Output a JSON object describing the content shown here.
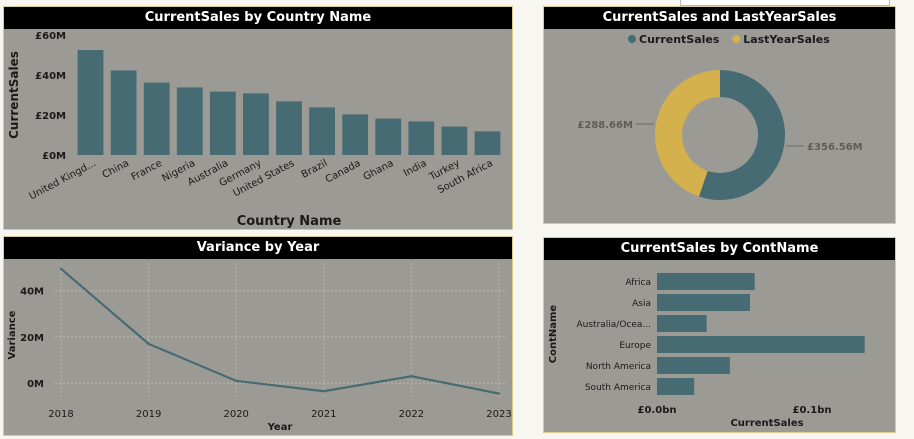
{
  "charts": {
    "country": {
      "title": "CurrentSales by Country Name",
      "chart_data": {
        "type": "bar",
        "categories": [
          "United Kingd...",
          "China",
          "France",
          "Nigeria",
          "Australia",
          "Germany",
          "United States",
          "Brazil",
          "Canada",
          "Ghana",
          "India",
          "Turkey",
          "South Africa"
        ],
        "values": [
          52.5,
          42.3,
          36.2,
          33.8,
          31.7,
          30.8,
          26.8,
          23.8,
          20.3,
          18.2,
          16.8,
          14.2,
          11.8
        ],
        "xlabel": "Country Name",
        "ylabel": "CurrentSales",
        "yticks": [
          0,
          20,
          40,
          60
        ],
        "ytick_labels": [
          "£0M",
          "£20M",
          "£40M",
          "£60M"
        ],
        "ylim": [
          0,
          60
        ],
        "color": "#466b73"
      }
    },
    "donut": {
      "title": "CurrentSales and LastYearSales",
      "chart_data": {
        "type": "pie",
        "donut": true,
        "legend_position": "top",
        "slices": [
          {
            "name": "CurrentSales",
            "value": 356.56,
            "label": "£356.56M",
            "color": "#466b73"
          },
          {
            "name": "LastYearSales",
            "value": 288.66,
            "label": "£288.66M",
            "color": "#d4b14c"
          }
        ]
      }
    },
    "variance": {
      "title": "Variance by Year",
      "chart_data": {
        "type": "line",
        "x": [
          2018,
          2019,
          2020,
          2021,
          2022,
          2023
        ],
        "values": [
          49.5,
          17,
          1,
          -3.5,
          3,
          -4.5
        ],
        "xlabel": "Year",
        "ylabel": "Variance",
        "yticks": [
          0,
          20,
          40
        ],
        "ytick_labels": [
          "0M",
          "20M",
          "40M"
        ],
        "ylim": [
          -6,
          52
        ],
        "grid": true,
        "color": "#466b73"
      }
    },
    "continent": {
      "title": "CurrentSales by ContName",
      "chart_data": {
        "type": "bar",
        "orientation": "horizontal",
        "categories": [
          "Africa",
          "Asia",
          "Australia/Ocea...",
          "Europe",
          "North America",
          "South America"
        ],
        "values": [
          0.063,
          0.06,
          0.032,
          0.134,
          0.047,
          0.024
        ],
        "xlabel": "CurrentSales",
        "ylabel": "ContName",
        "xticks": [
          0,
          0.1
        ],
        "xtick_labels": [
          "£0.0bn",
          "£0.1bn"
        ],
        "xlim": [
          0,
          0.14
        ],
        "color": "#466b73"
      }
    }
  }
}
